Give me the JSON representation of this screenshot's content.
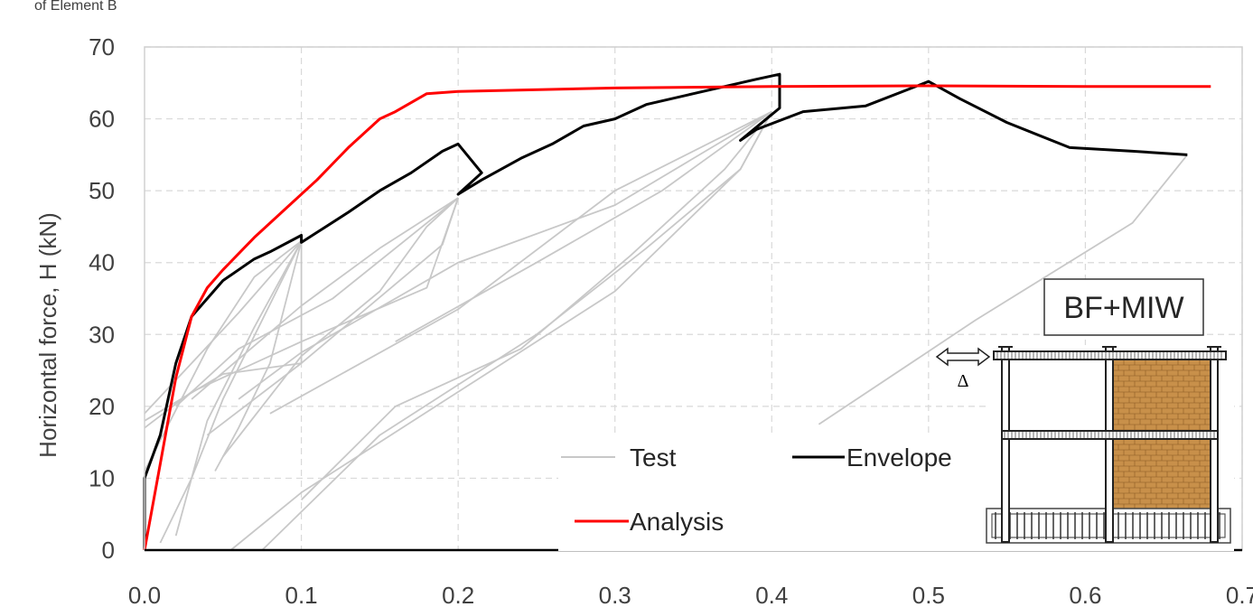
{
  "caption": "of Element B",
  "chart_data": {
    "type": "line",
    "title": "",
    "xlabel": "",
    "ylabel": "Horizontal force, H (kN)",
    "xlim": [
      0,
      0.7
    ],
    "ylim": [
      0,
      70
    ],
    "x_ticks": [
      "0.0",
      "0.1",
      "0.2",
      "0.3",
      "0.4",
      "0.5",
      "0.6",
      "0.7"
    ],
    "y_ticks": [
      "0",
      "10",
      "20",
      "30",
      "40",
      "50",
      "60",
      "70"
    ],
    "grid": true,
    "legend_position": "bottom-center",
    "series": [
      {
        "name": "Test",
        "color": "#c8c8c8",
        "segments": [
          [
            [
              0.0,
              18
            ],
            [
              0.05,
              24.5
            ],
            [
              0.1,
              26
            ],
            [
              0.1,
              43
            ]
          ],
          [
            [
              0.0,
              19
            ],
            [
              0.03,
              26
            ],
            [
              0.06,
              33
            ],
            [
              0.1,
              43
            ]
          ],
          [
            [
              0.0,
              11
            ],
            [
              0.04,
              28
            ],
            [
              0.07,
              38
            ],
            [
              0.1,
              43
            ]
          ],
          [
            [
              0.02,
              2
            ],
            [
              0.04,
              18
            ],
            [
              0.07,
              31
            ],
            [
              0.1,
              43
            ]
          ],
          [
            [
              0.045,
              11
            ],
            [
              0.06,
              17
            ],
            [
              0.08,
              26
            ],
            [
              0.1,
              43
            ]
          ],
          [
            [
              0.01,
              1
            ],
            [
              0.03,
              10
            ],
            [
              0.05,
              21
            ],
            [
              0.1,
              43
            ]
          ],
          [
            [
              0.0,
              17
            ],
            [
              0.03,
              22
            ],
            [
              0.1,
              29
            ],
            [
              0.18,
              36.5
            ],
            [
              0.2,
              49
            ]
          ],
          [
            [
              0.02,
              20
            ],
            [
              0.06,
              28
            ],
            [
              0.12,
              35
            ],
            [
              0.2,
              49
            ]
          ],
          [
            [
              0.03,
              21
            ],
            [
              0.1,
              34
            ],
            [
              0.15,
              42
            ],
            [
              0.2,
              49
            ]
          ],
          [
            [
              0.04,
              16
            ],
            [
              0.1,
              26
            ],
            [
              0.16,
              37
            ],
            [
              0.19,
              42.5
            ],
            [
              0.2,
              49
            ]
          ],
          [
            [
              0.05,
              13
            ],
            [
              0.1,
              27
            ],
            [
              0.15,
              36
            ],
            [
              0.18,
              45
            ],
            [
              0.2,
              49
            ]
          ],
          [
            [
              0.06,
              21
            ],
            [
              0.1,
              27.5
            ],
            [
              0.2,
              40
            ],
            [
              0.3,
              48
            ],
            [
              0.4,
              61
            ]
          ],
          [
            [
              0.08,
              19
            ],
            [
              0.2,
              33.5
            ],
            [
              0.3,
              50
            ],
            [
              0.4,
              61
            ]
          ],
          [
            [
              0.16,
              29
            ],
            [
              0.25,
              40
            ],
            [
              0.33,
              50
            ],
            [
              0.4,
              61
            ]
          ],
          [
            [
              0.1,
              7
            ],
            [
              0.16,
              20
            ],
            [
              0.24,
              28
            ],
            [
              0.31,
              41
            ],
            [
              0.37,
              53
            ],
            [
              0.4,
              61
            ]
          ],
          [
            [
              0.055,
              0
            ],
            [
              0.1,
              8
            ],
            [
              0.2,
              22
            ],
            [
              0.3,
              36
            ],
            [
              0.38,
              53
            ],
            [
              0.4,
              61
            ]
          ],
          [
            [
              0.075,
              0
            ],
            [
              0.15,
              16
            ],
            [
              0.25,
              30
            ],
            [
              0.32,
              42
            ],
            [
              0.38,
              53
            ],
            [
              0.4,
              61
            ]
          ],
          [
            [
              0.43,
              17.5
            ],
            [
              0.53,
              32
            ],
            [
              0.63,
              45.5
            ],
            [
              0.665,
              55
            ]
          ]
        ]
      },
      {
        "name": "Envelope",
        "color": "#000000",
        "points": [
          [
            0.0,
            0
          ],
          [
            0.0,
            10
          ],
          [
            0.01,
            16
          ],
          [
            0.02,
            26
          ],
          [
            0.03,
            32.5
          ],
          [
            0.05,
            37.5
          ],
          [
            0.07,
            40.5
          ],
          [
            0.08,
            41.5
          ],
          [
            0.1,
            43.8
          ],
          [
            0.1,
            42.8
          ],
          [
            0.11,
            44.2
          ],
          [
            0.13,
            47
          ],
          [
            0.15,
            50
          ],
          [
            0.17,
            52.5
          ],
          [
            0.19,
            55.5
          ],
          [
            0.2,
            56.5
          ],
          [
            0.215,
            52.5
          ],
          [
            0.2,
            49.5
          ],
          [
            0.215,
            51.5
          ],
          [
            0.24,
            54.5
          ],
          [
            0.26,
            56.5
          ],
          [
            0.28,
            59
          ],
          [
            0.3,
            60
          ],
          [
            0.32,
            62
          ],
          [
            0.35,
            63.5
          ],
          [
            0.39,
            65.5
          ],
          [
            0.405,
            66.2
          ],
          [
            0.405,
            61.5
          ],
          [
            0.38,
            57
          ],
          [
            0.39,
            58.5
          ],
          [
            0.42,
            61
          ],
          [
            0.46,
            61.8
          ],
          [
            0.5,
            65.2
          ],
          [
            0.52,
            62.8
          ],
          [
            0.55,
            59.5
          ],
          [
            0.59,
            56
          ],
          [
            0.63,
            55.5
          ],
          [
            0.665,
            55
          ]
        ]
      },
      {
        "name": "Analysis",
        "color": "#ff0000",
        "points": [
          [
            0.0,
            0
          ],
          [
            0.01,
            12
          ],
          [
            0.02,
            24
          ],
          [
            0.03,
            32.5
          ],
          [
            0.04,
            36.5
          ],
          [
            0.05,
            39
          ],
          [
            0.07,
            43.5
          ],
          [
            0.09,
            47.5
          ],
          [
            0.11,
            51.5
          ],
          [
            0.13,
            56
          ],
          [
            0.15,
            60
          ],
          [
            0.16,
            61
          ],
          [
            0.18,
            63.5
          ],
          [
            0.2,
            63.8
          ],
          [
            0.3,
            64.3
          ],
          [
            0.4,
            64.5
          ],
          [
            0.5,
            64.6
          ],
          [
            0.6,
            64.5
          ],
          [
            0.68,
            64.5
          ]
        ]
      }
    ],
    "inset": {
      "label": "BF+MIW",
      "displacement_symbol": "Δ"
    }
  }
}
